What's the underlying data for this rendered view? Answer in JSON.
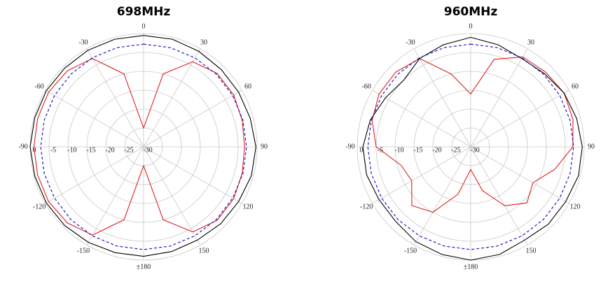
{
  "chart_data": [
    {
      "type": "polar",
      "title": "698MHz",
      "theta": [
        0,
        15,
        30,
        45,
        60,
        75,
        90,
        105,
        120,
        135,
        150,
        165,
        180,
        -165,
        -150,
        -135,
        -120,
        -105,
        -90,
        -75,
        -60,
        -45,
        -30,
        -15
      ],
      "rlim": [
        -30,
        0
      ],
      "rticks": [
        0,
        -5,
        -10,
        -15,
        -20,
        -25,
        -30
      ],
      "thetaticks": [
        0,
        30,
        60,
        90,
        120,
        150,
        {
          "value": 180,
          "label": "±180"
        },
        -150,
        -120,
        -90,
        -60,
        -30
      ],
      "grid": true,
      "series": [
        {
          "color": "#e02020",
          "dash": false,
          "values": [
            -25,
            -10,
            -4,
            -2.5,
            -2.5,
            -3,
            -3.3,
            -3,
            -2.5,
            -2.5,
            -4,
            -10,
            -25,
            -10,
            -3,
            -1.5,
            -1,
            -1,
            -1,
            -1,
            -1,
            -1.5,
            -3,
            -10
          ]
        },
        {
          "color": "#000000",
          "dash": false,
          "values": [
            -0.5,
            -0.5,
            -0.8,
            -1,
            -1,
            -0.8,
            -0.3,
            -0.5,
            -1,
            -1.2,
            -1.5,
            -1.3,
            -1,
            -1,
            -0.8,
            -0.5,
            -0.3,
            -0.2,
            0,
            -0.2,
            -0.3,
            -0.5,
            -0.5,
            -0.5
          ]
        },
        {
          "color": "#2020c0",
          "dash": true,
          "values": [
            -2.8,
            -2.8,
            -2.8,
            -2.8,
            -2.8,
            -2.8,
            -2.8,
            -2.8,
            -2.8,
            -2.8,
            -2.8,
            -2.8,
            -2.8,
            -2.8,
            -2.8,
            -2.8,
            -2.8,
            -2.8,
            -2.8,
            -2.8,
            -2.8,
            -2.8,
            -2.8,
            -2.8
          ]
        }
      ]
    },
    {
      "type": "polar",
      "title": "960MHz",
      "theta": [
        0,
        15,
        30,
        45,
        60,
        75,
        90,
        105,
        120,
        135,
        150,
        165,
        180,
        -165,
        -150,
        -135,
        -120,
        -105,
        -90,
        -75,
        -60,
        -45,
        -30,
        -15
      ],
      "rlim": [
        -30,
        0
      ],
      "rticks": [
        0,
        -5,
        -10,
        -15,
        -20,
        -25,
        -30
      ],
      "thetaticks": [
        0,
        30,
        60,
        90,
        120,
        150,
        {
          "value": 180,
          "label": "±180"
        },
        -150,
        -120,
        -90,
        -60,
        -30
      ],
      "grid": true,
      "series": [
        {
          "color": "#e02020",
          "dash": false,
          "values": [
            -16,
            -6,
            -2.5,
            -2,
            -1.5,
            -2,
            -3,
            -7,
            -11,
            -9,
            -12,
            -18,
            -24,
            -17,
            -10,
            -8,
            -12,
            -11,
            -5,
            -3,
            -2,
            -2,
            -3,
            -10
          ]
        },
        {
          "color": "#000000",
          "dash": false,
          "values": [
            -1,
            -2,
            -3,
            -2.5,
            -1.5,
            -1,
            -0.5,
            -0.5,
            -1,
            -1,
            -1.5,
            -0.5,
            0,
            -0.5,
            -1,
            -2,
            -2,
            -1.5,
            -1.5,
            -2.5,
            -4,
            -5,
            -3,
            -2
          ]
        },
        {
          "color": "#2020c0",
          "dash": true,
          "values": [
            -2.8,
            -2.8,
            -2.8,
            -2.8,
            -2.8,
            -2.8,
            -2.8,
            -2.8,
            -2.8,
            -2.8,
            -2.8,
            -2.8,
            -2.8,
            -2.8,
            -2.8,
            -2.8,
            -2.8,
            -2.8,
            -2.8,
            -2.8,
            -2.8,
            -2.8,
            -2.8,
            -2.8
          ]
        }
      ]
    }
  ]
}
